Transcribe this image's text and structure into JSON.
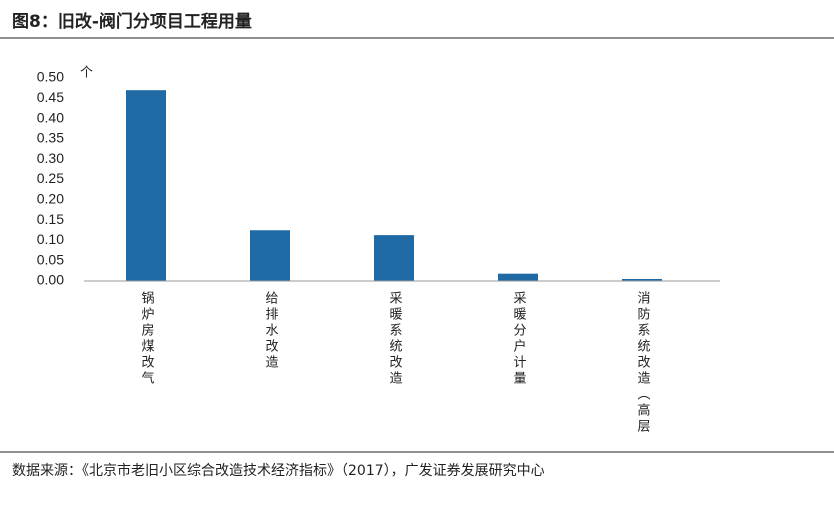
{
  "chart_data": {
    "type": "bar",
    "title": "图8：旧改-阀门分项目工程用量",
    "unit": "个",
    "categories": [
      "锅炉房煤改气",
      "给排水改造",
      "采暖系统改造",
      "采暖分户计量",
      "消防系统改造（高层"
    ],
    "values": [
      0.47,
      0.125,
      0.113,
      0.018,
      0.005
    ],
    "color": "#1f6aa5",
    "ylim": [
      0,
      0.5
    ],
    "yticks": [
      {
        "value": 0,
        "label": "0.00"
      },
      {
        "value": 0.05,
        "label": "0.05"
      },
      {
        "value": 0.1,
        "label": "0.10"
      },
      {
        "value": 0.15,
        "label": "0.15"
      },
      {
        "value": 0.2,
        "label": "0.20"
      },
      {
        "value": 0.25,
        "label": "0.25"
      },
      {
        "value": 0.3,
        "label": "0.30"
      },
      {
        "value": 0.35,
        "label": "0.35"
      },
      {
        "value": 0.4,
        "label": "0.40"
      },
      {
        "value": 0.45,
        "label": "0.45"
      },
      {
        "value": 0.5,
        "label": "0.50"
      }
    ],
    "source": "数据来源：《北京市老旧小区综合改造技术经济指标》（2017），广发证券发展研究中心"
  }
}
